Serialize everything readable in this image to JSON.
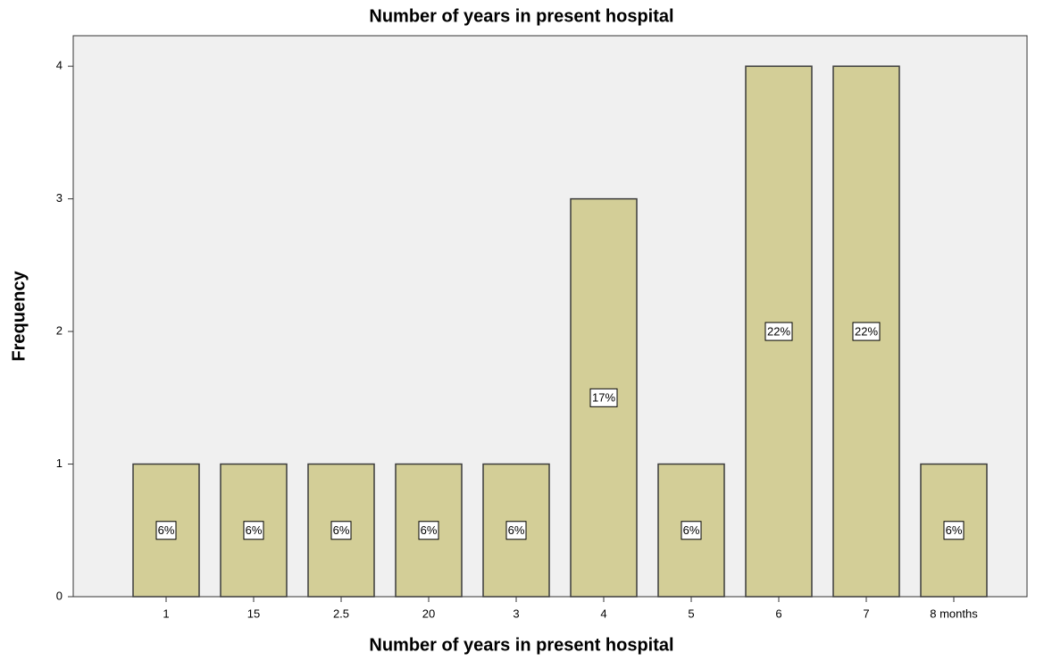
{
  "chart_data": {
    "type": "bar",
    "title": "Number of years in present hospital",
    "x_label": "Number of years in present hospital",
    "y_label": "Frequency",
    "categories": [
      "1",
      "15",
      "2.5",
      "20",
      "3",
      "4",
      "5",
      "6",
      "7",
      "8 months"
    ],
    "values": [
      1,
      1,
      1,
      1,
      1,
      3,
      1,
      4,
      4,
      1
    ],
    "value_labels": [
      "6%",
      "6%",
      "6%",
      "6%",
      "6%",
      "17%",
      "6%",
      "22%",
      "22%",
      "6%"
    ],
    "color": "#d3ce97",
    "ylim": [
      0,
      4.23
    ],
    "yticks": [
      0,
      1,
      2,
      3,
      4
    ],
    "grid": false
  }
}
